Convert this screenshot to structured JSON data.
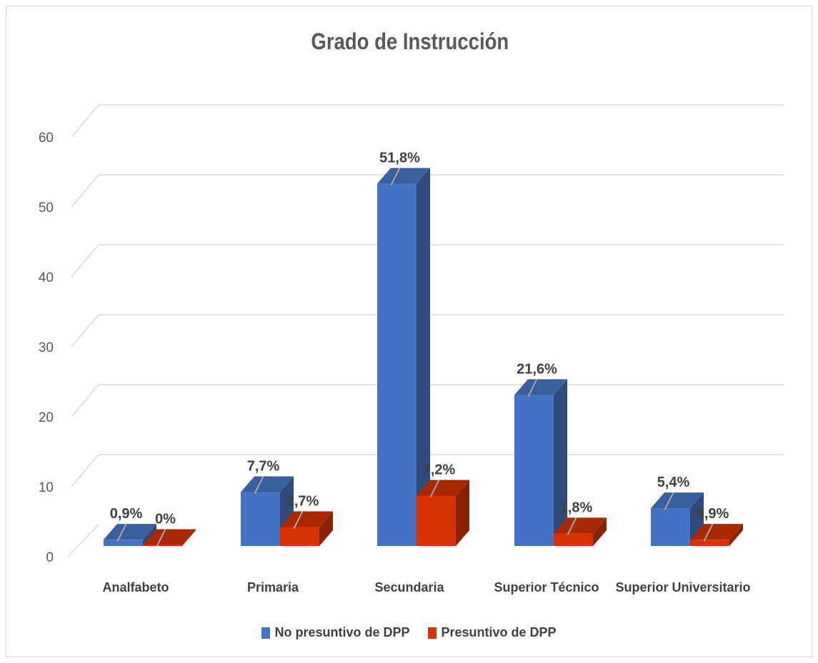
{
  "chart_data": {
    "type": "bar",
    "title": "Grado de Instrucción",
    "categories": [
      "Analfabeto",
      "Primaria",
      "Secundaria",
      "Superior Técnico",
      "Superior Universitario"
    ],
    "series": [
      {
        "name": "No presuntivo de DPP",
        "values": [
          0.9,
          7.7,
          51.8,
          21.6,
          5.4
        ],
        "labels": [
          "0,9%",
          "7,7%",
          "51,8%",
          "21,6%",
          "5,4%"
        ],
        "color": "#4472c4",
        "top_color": "#3a5f9e",
        "side_color": "#2c4a7c"
      },
      {
        "name": "Presuntivo de DPP",
        "values": [
          0,
          2.7,
          7.2,
          1.8,
          0.9
        ],
        "labels": [
          "0%",
          "2,7%",
          "7,2%",
          "1,8%",
          "0,9%"
        ],
        "color": "#d73302",
        "top_color": "#a82800",
        "side_color": "#8c2100"
      }
    ],
    "yticks": [
      "0",
      "10",
      "20",
      "30",
      "40",
      "50",
      "60"
    ],
    "ylim": [
      0,
      60
    ],
    "grid": true,
    "legend_position": "bottom",
    "style": "3d-clustered-column"
  }
}
